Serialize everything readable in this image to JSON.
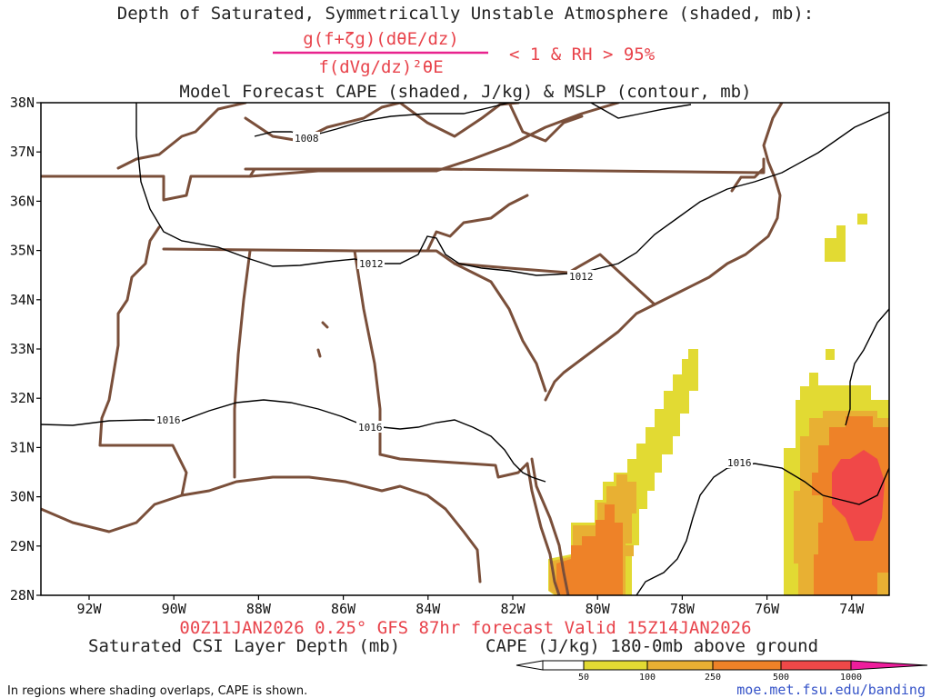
{
  "header": {
    "title_line1": "Depth of Saturated, Symmetrically Unstable Atmosphere (shaded, mb):",
    "numerator": "g(f+ζg)(dθE/dz)",
    "denominator": "f(dVg/dz)²θE",
    "condition": "< 1 & RH > 95%",
    "title_line3": "Model Forecast CAPE (shaded, J/kg) & MSLP (contour, mb)"
  },
  "axes": {
    "lat_labels": [
      "38N",
      "37N",
      "36N",
      "35N",
      "34N",
      "33N",
      "32N",
      "31N",
      "30N",
      "29N",
      "28N"
    ],
    "lon_labels": [
      "92W",
      "90W",
      "88W",
      "86W",
      "84W",
      "82W",
      "80W",
      "78W",
      "76W",
      "74W"
    ]
  },
  "isobars": [
    {
      "label": "1008"
    },
    {
      "label": "1012"
    },
    {
      "label": "1012"
    },
    {
      "label": "1016"
    },
    {
      "label": "1016"
    },
    {
      "label": "1016"
    }
  ],
  "footer": {
    "run_info": "00Z11JAN2026 0.25° GFS 87hr forecast Valid 15Z14JAN2026",
    "left_label": "Saturated CSI Layer Depth (mb)",
    "right_label": "CAPE (J/kg) 180-0mb above ground",
    "note": "In regions where shading overlaps, CAPE is shown.",
    "link": "moe.met.fsu.edu/banding"
  },
  "colorbar": {
    "ticks": [
      "50",
      "100",
      "250",
      "500",
      "1000"
    ],
    "colors": [
      "#ffffff",
      "#e8e033",
      "#e8b033",
      "#ee8228",
      "#f04848",
      "#ee1d9c"
    ]
  },
  "colors": {
    "state_lines": "#7a4f3a",
    "cape_50": "#e2da33",
    "cape_100": "#e8b033",
    "cape_250": "#ee8228",
    "cape_500": "#f04848",
    "title_red": "#e8434b"
  }
}
